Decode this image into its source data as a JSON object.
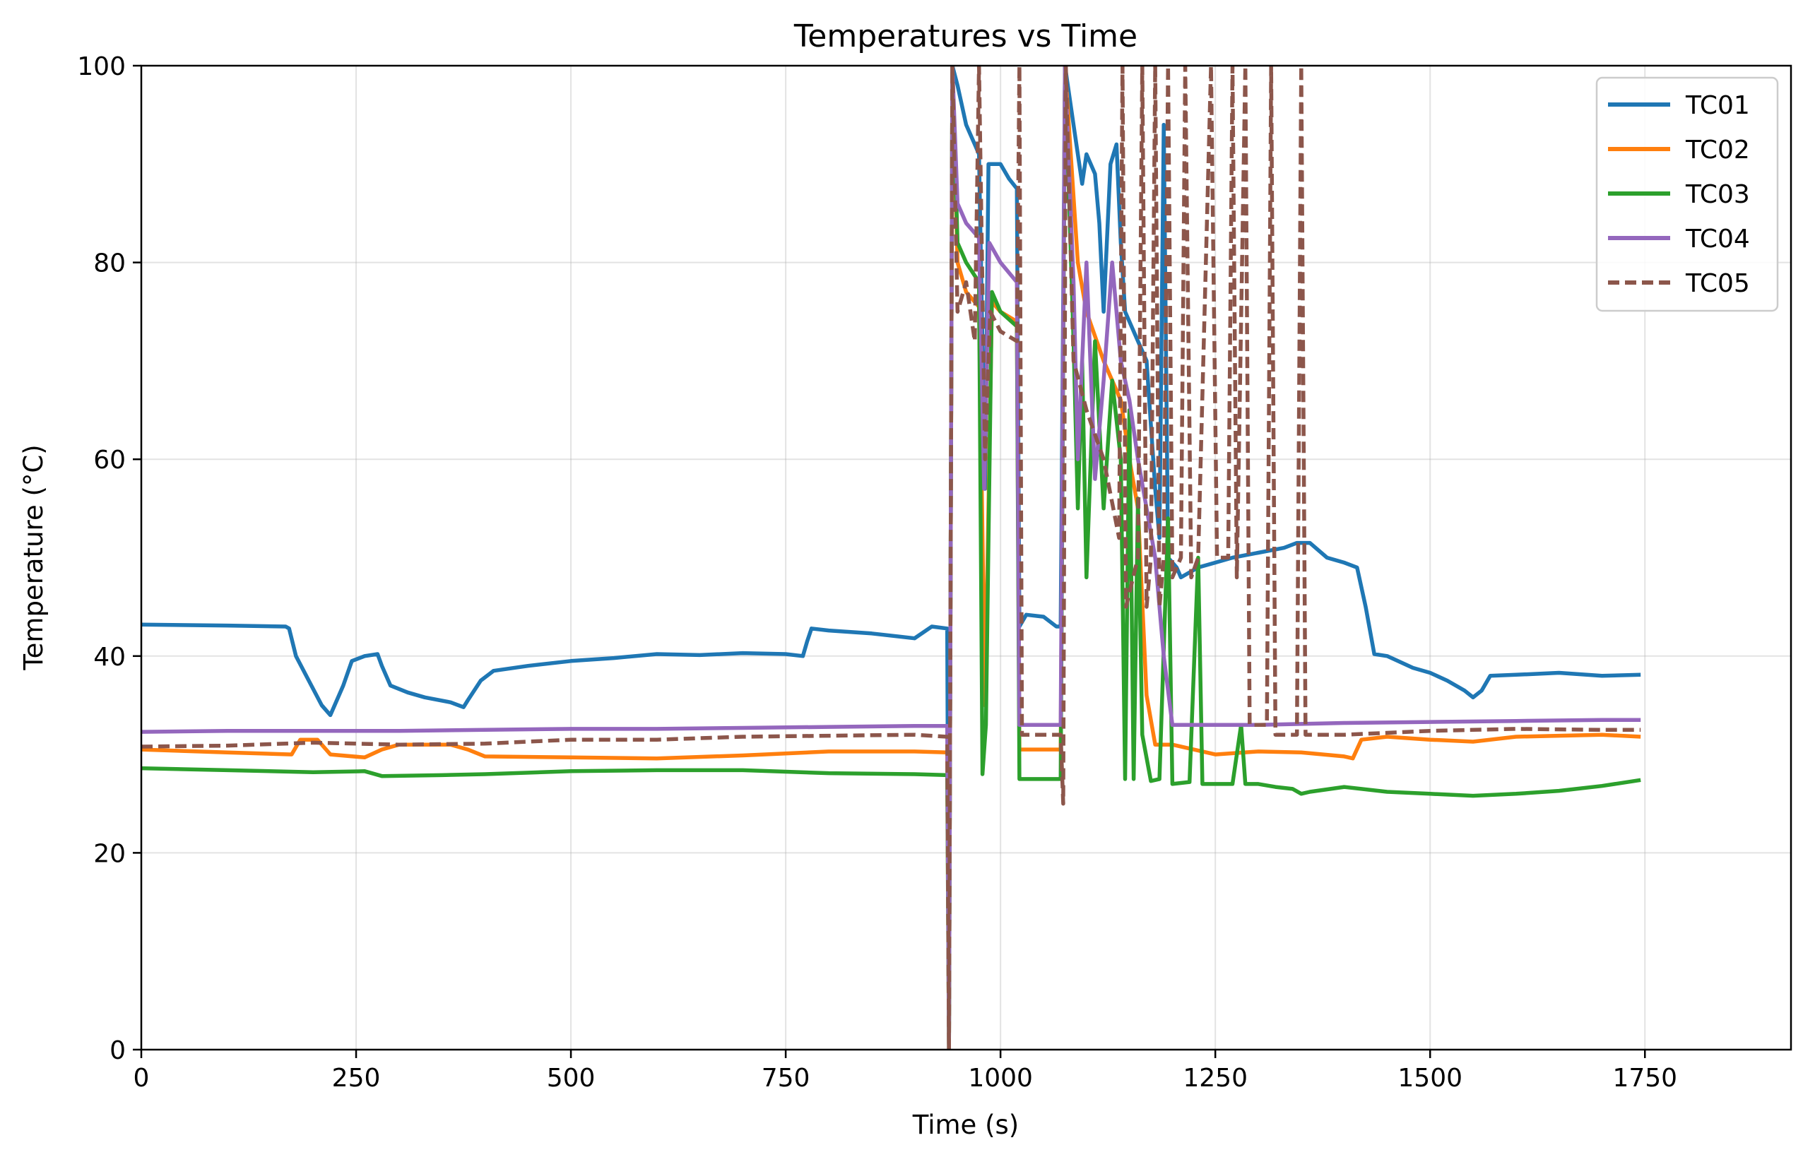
{
  "chart_data": {
    "type": "line",
    "title": "Temperatures vs Time",
    "xlabel": "Time (s)",
    "ylabel": "Temperature (°C)",
    "xlim": [
      0,
      1920
    ],
    "ylim": [
      0,
      100
    ],
    "xticks": [
      0,
      250,
      500,
      750,
      1000,
      1250,
      1500,
      1750
    ],
    "yticks": [
      0,
      20,
      40,
      60,
      80,
      100
    ],
    "xtick_labels": [
      "0",
      "250",
      "500",
      "750",
      "1000",
      "1250",
      "1500",
      "1750"
    ],
    "ytick_labels": [
      "0",
      "20",
      "40",
      "60",
      "80",
      "100"
    ],
    "grid": true,
    "legend_position": "top-right",
    "series": [
      {
        "name": "TC01",
        "color": "#1f77b4",
        "dash": "solid",
        "points": [
          [
            0,
            43.2
          ],
          [
            100,
            43.1
          ],
          [
            168,
            43.0
          ],
          [
            172,
            42.8
          ],
          [
            180,
            40
          ],
          [
            195,
            37.5
          ],
          [
            210,
            35
          ],
          [
            220,
            34
          ],
          [
            235,
            37
          ],
          [
            245,
            39.5
          ],
          [
            260,
            40
          ],
          [
            275,
            40.2
          ],
          [
            280,
            39
          ],
          [
            290,
            37
          ],
          [
            310,
            36.3
          ],
          [
            330,
            35.8
          ],
          [
            360,
            35.3
          ],
          [
            375,
            34.8
          ],
          [
            380,
            35.5
          ],
          [
            395,
            37.5
          ],
          [
            410,
            38.5
          ],
          [
            450,
            39
          ],
          [
            500,
            39.5
          ],
          [
            550,
            39.8
          ],
          [
            600,
            40.2
          ],
          [
            650,
            40.1
          ],
          [
            700,
            40.3
          ],
          [
            750,
            40.2
          ],
          [
            770,
            40.0
          ],
          [
            775,
            41.5
          ],
          [
            780,
            42.8
          ],
          [
            800,
            42.6
          ],
          [
            850,
            42.3
          ],
          [
            900,
            41.8
          ],
          [
            920,
            43
          ],
          [
            938,
            42.8
          ],
          [
            940,
            0
          ],
          [
            944,
            100
          ],
          [
            950,
            98
          ],
          [
            960,
            94
          ],
          [
            970,
            92
          ],
          [
            975,
            91
          ],
          [
            982,
            57
          ],
          [
            986,
            90
          ],
          [
            1000,
            90
          ],
          [
            1010,
            88.5
          ],
          [
            1019,
            87.5
          ],
          [
            1022,
            43
          ],
          [
            1030,
            44.2
          ],
          [
            1050,
            44
          ],
          [
            1065,
            43
          ],
          [
            1070,
            43
          ],
          [
            1075,
            100
          ],
          [
            1085,
            94
          ],
          [
            1095,
            88
          ],
          [
            1100,
            91
          ],
          [
            1110,
            89
          ],
          [
            1115,
            84
          ],
          [
            1120,
            75
          ],
          [
            1128,
            90
          ],
          [
            1135,
            92
          ],
          [
            1140,
            82
          ],
          [
            1145,
            75
          ],
          [
            1160,
            72
          ],
          [
            1170,
            70
          ],
          [
            1180,
            57
          ],
          [
            1185,
            52
          ],
          [
            1190,
            94
          ],
          [
            1195,
            50
          ],
          [
            1205,
            49
          ],
          [
            1210,
            48
          ],
          [
            1220,
            48.5
          ],
          [
            1230,
            49
          ],
          [
            1250,
            49.5
          ],
          [
            1270,
            50
          ],
          [
            1300,
            50.5
          ],
          [
            1330,
            51
          ],
          [
            1345,
            51.5
          ],
          [
            1360,
            51.5
          ],
          [
            1380,
            50
          ],
          [
            1400,
            49.5
          ],
          [
            1415,
            49
          ],
          [
            1425,
            45
          ],
          [
            1435,
            40.2
          ],
          [
            1450,
            40
          ],
          [
            1480,
            38.8
          ],
          [
            1500,
            38.3
          ],
          [
            1520,
            37.5
          ],
          [
            1540,
            36.5
          ],
          [
            1550,
            35.8
          ],
          [
            1560,
            36.5
          ],
          [
            1570,
            38
          ],
          [
            1600,
            38.1
          ],
          [
            1650,
            38.3
          ],
          [
            1700,
            38.0
          ],
          [
            1745,
            38.1
          ]
        ]
      },
      {
        "name": "TC02",
        "color": "#ff7f0e",
        "dash": "solid",
        "points": [
          [
            0,
            30.5
          ],
          [
            100,
            30.2
          ],
          [
            175,
            30.0
          ],
          [
            185,
            31.5
          ],
          [
            205,
            31.5
          ],
          [
            220,
            30
          ],
          [
            260,
            29.7
          ],
          [
            280,
            30.5
          ],
          [
            300,
            31
          ],
          [
            360,
            31
          ],
          [
            380,
            30.5
          ],
          [
            400,
            29.8
          ],
          [
            500,
            29.7
          ],
          [
            600,
            29.6
          ],
          [
            700,
            29.9
          ],
          [
            800,
            30.3
          ],
          [
            900,
            30.3
          ],
          [
            938,
            30.2
          ],
          [
            940,
            0
          ],
          [
            944,
            100
          ],
          [
            950,
            80
          ],
          [
            960,
            77
          ],
          [
            975,
            75.5
          ],
          [
            982,
            35
          ],
          [
            990,
            76
          ],
          [
            1000,
            75
          ],
          [
            1019,
            74
          ],
          [
            1022,
            30.5
          ],
          [
            1070,
            30.5
          ],
          [
            1075,
            100
          ],
          [
            1090,
            80
          ],
          [
            1100,
            75
          ],
          [
            1120,
            70
          ],
          [
            1140,
            66
          ],
          [
            1150,
            60
          ],
          [
            1160,
            55
          ],
          [
            1170,
            36
          ],
          [
            1180,
            31
          ],
          [
            1200,
            31
          ],
          [
            1250,
            30
          ],
          [
            1300,
            30.3
          ],
          [
            1350,
            30.2
          ],
          [
            1400,
            29.8
          ],
          [
            1410,
            29.6
          ],
          [
            1420,
            31.5
          ],
          [
            1450,
            31.8
          ],
          [
            1500,
            31.5
          ],
          [
            1550,
            31.3
          ],
          [
            1600,
            31.8
          ],
          [
            1650,
            31.9
          ],
          [
            1700,
            32
          ],
          [
            1745,
            31.8
          ]
        ]
      },
      {
        "name": "TC03",
        "color": "#2ca02c",
        "dash": "solid",
        "points": [
          [
            0,
            28.6
          ],
          [
            100,
            28.4
          ],
          [
            200,
            28.2
          ],
          [
            260,
            28.3
          ],
          [
            280,
            27.8
          ],
          [
            350,
            27.9
          ],
          [
            400,
            28.0
          ],
          [
            500,
            28.3
          ],
          [
            600,
            28.4
          ],
          [
            700,
            28.4
          ],
          [
            800,
            28.1
          ],
          [
            900,
            28.0
          ],
          [
            938,
            27.9
          ],
          [
            940,
            0
          ],
          [
            944,
            100
          ],
          [
            950,
            82
          ],
          [
            960,
            80
          ],
          [
            975,
            78
          ],
          [
            979,
            28
          ],
          [
            983,
            33
          ],
          [
            990,
            77
          ],
          [
            1000,
            75
          ],
          [
            1019,
            73.5
          ],
          [
            1022,
            27.5
          ],
          [
            1070,
            27.5
          ],
          [
            1075,
            100
          ],
          [
            1085,
            72
          ],
          [
            1090,
            55
          ],
          [
            1095,
            70
          ],
          [
            1100,
            48
          ],
          [
            1110,
            72
          ],
          [
            1120,
            55
          ],
          [
            1130,
            68
          ],
          [
            1140,
            60
          ],
          [
            1145,
            27.5
          ],
          [
            1150,
            65
          ],
          [
            1155,
            27.5
          ],
          [
            1160,
            56
          ],
          [
            1165,
            32
          ],
          [
            1175,
            27.3
          ],
          [
            1185,
            27.5
          ],
          [
            1195,
            54
          ],
          [
            1200,
            27
          ],
          [
            1220,
            27.2
          ],
          [
            1230,
            50
          ],
          [
            1235,
            27
          ],
          [
            1270,
            27
          ],
          [
            1280,
            33
          ],
          [
            1285,
            27
          ],
          [
            1300,
            27
          ],
          [
            1320,
            26.7
          ],
          [
            1340,
            26.5
          ],
          [
            1350,
            26
          ],
          [
            1360,
            26.2
          ],
          [
            1400,
            26.7
          ],
          [
            1450,
            26.2
          ],
          [
            1500,
            26.0
          ],
          [
            1550,
            25.8
          ],
          [
            1600,
            26
          ],
          [
            1650,
            26.3
          ],
          [
            1700,
            26.8
          ],
          [
            1745,
            27.4
          ]
        ]
      },
      {
        "name": "TC04",
        "color": "#9467bd",
        "dash": "solid",
        "points": [
          [
            0,
            32.3
          ],
          [
            100,
            32.4
          ],
          [
            200,
            32.4
          ],
          [
            300,
            32.4
          ],
          [
            400,
            32.5
          ],
          [
            500,
            32.6
          ],
          [
            600,
            32.6
          ],
          [
            700,
            32.7
          ],
          [
            800,
            32.8
          ],
          [
            900,
            32.9
          ],
          [
            938,
            32.9
          ],
          [
            940,
            0
          ],
          [
            944,
            100
          ],
          [
            950,
            86
          ],
          [
            960,
            84
          ],
          [
            975,
            82.5
          ],
          [
            981,
            57
          ],
          [
            987,
            82
          ],
          [
            1000,
            80
          ],
          [
            1019,
            78
          ],
          [
            1022,
            33
          ],
          [
            1070,
            33
          ],
          [
            1075,
            100
          ],
          [
            1085,
            78
          ],
          [
            1090,
            60
          ],
          [
            1100,
            80
          ],
          [
            1110,
            58
          ],
          [
            1120,
            68
          ],
          [
            1130,
            80
          ],
          [
            1140,
            70
          ],
          [
            1150,
            66
          ],
          [
            1160,
            60
          ],
          [
            1170,
            55
          ],
          [
            1180,
            50
          ],
          [
            1190,
            40
          ],
          [
            1200,
            33
          ],
          [
            1250,
            33
          ],
          [
            1300,
            33
          ],
          [
            1400,
            33.2
          ],
          [
            1500,
            33.3
          ],
          [
            1600,
            33.4
          ],
          [
            1700,
            33.5
          ],
          [
            1745,
            33.5
          ]
        ]
      },
      {
        "name": "TC05",
        "color": "#8c564b",
        "dash": "dashed",
        "points": [
          [
            0,
            30.8
          ],
          [
            100,
            30.9
          ],
          [
            200,
            31.2
          ],
          [
            300,
            31.0
          ],
          [
            400,
            31.1
          ],
          [
            500,
            31.5
          ],
          [
            600,
            31.5
          ],
          [
            700,
            31.8
          ],
          [
            800,
            31.9
          ],
          [
            900,
            32.0
          ],
          [
            938,
            31.8
          ],
          [
            940,
            0
          ],
          [
            944,
            100
          ],
          [
            950,
            75
          ],
          [
            960,
            78
          ],
          [
            970,
            72
          ],
          [
            975,
            100
          ],
          [
            982,
            60
          ],
          [
            988,
            75
          ],
          [
            1000,
            73
          ],
          [
            1019,
            72
          ],
          [
            1022,
            100
          ],
          [
            1025,
            32
          ],
          [
            1070,
            32
          ],
          [
            1073,
            25
          ],
          [
            1076,
            100
          ],
          [
            1085,
            70
          ],
          [
            1100,
            65
          ],
          [
            1120,
            60
          ],
          [
            1138,
            52
          ],
          [
            1142,
            100
          ],
          [
            1146,
            45
          ],
          [
            1160,
            50
          ],
          [
            1165,
            100
          ],
          [
            1170,
            45
          ],
          [
            1175,
            50
          ],
          [
            1180,
            100
          ],
          [
            1185,
            45
          ],
          [
            1190,
            50
          ],
          [
            1195,
            100
          ],
          [
            1200,
            48
          ],
          [
            1210,
            50
          ],
          [
            1215,
            100
          ],
          [
            1222,
            48
          ],
          [
            1230,
            50
          ],
          [
            1245,
            100
          ],
          [
            1252,
            50
          ],
          [
            1265,
            50
          ],
          [
            1270,
            100
          ],
          [
            1275,
            48
          ],
          [
            1285,
            100
          ],
          [
            1290,
            33
          ],
          [
            1310,
            33
          ],
          [
            1315,
            100
          ],
          [
            1320,
            32
          ],
          [
            1345,
            32
          ],
          [
            1350,
            100
          ],
          [
            1355,
            32
          ],
          [
            1400,
            32
          ],
          [
            1450,
            32.2
          ],
          [
            1500,
            32.4
          ],
          [
            1550,
            32.5
          ],
          [
            1600,
            32.6
          ],
          [
            1700,
            32.5
          ],
          [
            1745,
            32.5
          ]
        ]
      }
    ]
  }
}
